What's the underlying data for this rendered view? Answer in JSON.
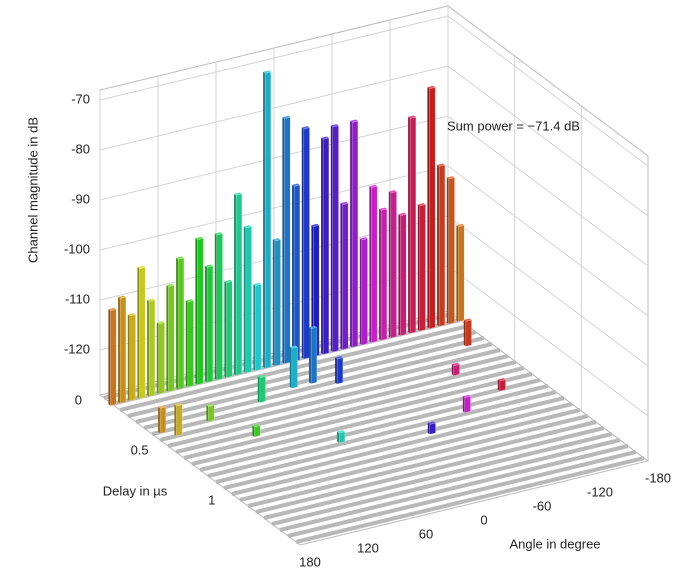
{
  "chart_data": {
    "type": "bar3d",
    "z_label": "Channel magnitude in dB",
    "x_label": "Angle in degree",
    "y_label": "Delay in µs",
    "annotation": "Sum power = −71.4 dB",
    "xlim": [
      180,
      -180
    ],
    "xticks": [
      180,
      120,
      60,
      0,
      -60,
      -120,
      -180
    ],
    "ylim": [
      0,
      1.5
    ],
    "yticks": [
      0,
      0.5,
      1
    ],
    "zlim": [
      -129,
      -68
    ],
    "zticks": [
      -70,
      -80,
      -90,
      -100,
      -110,
      -120
    ],
    "colormap": "hsv",
    "grid": true,
    "bars": {
      "angle": [
        180,
        170,
        160,
        150,
        140,
        130,
        120,
        110,
        100,
        90,
        80,
        70,
        60,
        50,
        40,
        30,
        20,
        10,
        0,
        -10,
        -20,
        -30,
        -40,
        -50,
        -60,
        -70,
        -80,
        -90,
        -100,
        -110,
        -120,
        -130,
        -140,
        -150,
        -160,
        -170,
        -180,
        170,
        160,
        120,
        100,
        60,
        20,
        0,
        -20,
        40,
        -40,
        -90,
        -140,
        -160,
        -120
      ],
      "delay": [
        0.1,
        0.1,
        0.1,
        0.1,
        0.1,
        0.1,
        0.1,
        0.1,
        0.1,
        0.1,
        0.1,
        0.1,
        0.1,
        0.1,
        0.1,
        0.1,
        0.1,
        0.1,
        0.1,
        0.1,
        0.1,
        0.1,
        0.1,
        0.1,
        0.1,
        0.1,
        0.1,
        0.1,
        0.1,
        0.1,
        0.1,
        0.1,
        0.1,
        0.1,
        0.1,
        0.1,
        0.1,
        0.4,
        0.45,
        0.4,
        0.6,
        0.35,
        0.3,
        0.3,
        0.35,
        0.8,
        0.9,
        0.8,
        0.7,
        0.3,
        0.5
      ],
      "magnitude": [
        -110,
        -108,
        -112,
        -103,
        -110,
        -115,
        -108,
        -103,
        -112,
        -100,
        -106,
        -100,
        -110,
        -93,
        -100,
        -112,
        -70,
        -104,
        -80,
        -94,
        -83,
        -103,
        -86,
        -84,
        -100,
        -84,
        -108,
        -98,
        -103,
        -100,
        -105,
        -86,
        -104,
        -81,
        -97,
        -100,
        -110,
        -124,
        -123,
        -126,
        -127,
        -124,
        -121,
        -118,
        -124,
        -127,
        -127,
        -126,
        -127,
        -124,
        -127
      ]
    }
  }
}
